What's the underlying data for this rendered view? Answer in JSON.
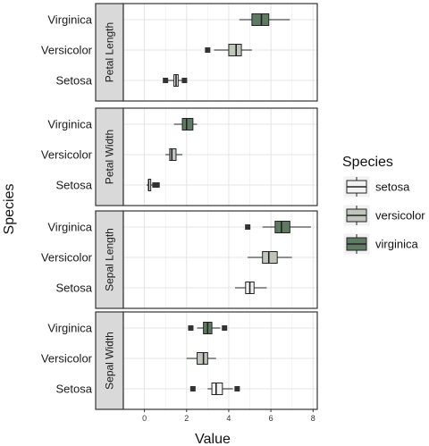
{
  "chart_data": {
    "type": "boxplot",
    "facet_by": "measurement",
    "orientation": "horizontal",
    "xlabel": "Value",
    "ylabel": "Species",
    "xlim": [
      -1,
      8.2
    ],
    "xticks": [
      0,
      2,
      4,
      6,
      8
    ],
    "grid": true,
    "categories": [
      "Virginica",
      "Versicolor",
      "Setosa"
    ],
    "legend": {
      "title": "Species",
      "position": "right",
      "entries": [
        {
          "label": "setosa",
          "color": "#f2f2f2"
        },
        {
          "label": "versicolor",
          "color": "#bfc7bc"
        },
        {
          "label": "virginica",
          "color": "#5f7a62"
        }
      ]
    },
    "facets": [
      {
        "label": "Petal Length",
        "boxes": [
          {
            "category": "Virginica",
            "color": "#5f7a62",
            "min": 4.5,
            "q1": 5.1,
            "median": 5.55,
            "q3": 5.9,
            "max": 6.9,
            "outliers": []
          },
          {
            "category": "Versicolor",
            "color": "#bfc7bc",
            "min": 3.3,
            "q1": 4.0,
            "median": 4.35,
            "q3": 4.6,
            "max": 5.1,
            "outliers": [
              3.0
            ]
          },
          {
            "category": "Setosa",
            "color": "#f2f2f2",
            "min": 1.1,
            "q1": 1.4,
            "median": 1.5,
            "q3": 1.6,
            "max": 1.9,
            "outliers": [
              1.0,
              1.9
            ]
          }
        ]
      },
      {
        "label": "Petal Width",
        "boxes": [
          {
            "category": "Virginica",
            "color": "#5f7a62",
            "min": 1.4,
            "q1": 1.8,
            "median": 2.0,
            "q3": 2.3,
            "max": 2.5,
            "outliers": []
          },
          {
            "category": "Versicolor",
            "color": "#bfc7bc",
            "min": 1.0,
            "q1": 1.2,
            "median": 1.3,
            "q3": 1.5,
            "max": 1.8,
            "outliers": []
          },
          {
            "category": "Setosa",
            "color": "#f2f2f2",
            "min": 0.1,
            "q1": 0.2,
            "median": 0.2,
            "q3": 0.3,
            "max": 0.4,
            "outliers": [
              0.5,
              0.6
            ]
          }
        ]
      },
      {
        "label": "Sepal Length",
        "boxes": [
          {
            "category": "Virginica",
            "color": "#5f7a62",
            "min": 5.6,
            "q1": 6.2,
            "median": 6.5,
            "q3": 6.9,
            "max": 7.9,
            "outliers": [
              4.9
            ]
          },
          {
            "category": "Versicolor",
            "color": "#bfc7bc",
            "min": 4.9,
            "q1": 5.6,
            "median": 5.9,
            "q3": 6.3,
            "max": 7.0,
            "outliers": []
          },
          {
            "category": "Setosa",
            "color": "#f2f2f2",
            "min": 4.3,
            "q1": 4.8,
            "median": 5.0,
            "q3": 5.2,
            "max": 5.8,
            "outliers": []
          }
        ]
      },
      {
        "label": "Sepal Width",
        "boxes": [
          {
            "category": "Virginica",
            "color": "#5f7a62",
            "min": 2.5,
            "q1": 2.8,
            "median": 3.0,
            "q3": 3.2,
            "max": 3.6,
            "outliers": [
              2.2,
              3.8
            ]
          },
          {
            "category": "Versicolor",
            "color": "#bfc7bc",
            "min": 2.0,
            "q1": 2.5,
            "median": 2.8,
            "q3": 3.0,
            "max": 3.4,
            "outliers": []
          },
          {
            "category": "Setosa",
            "color": "#f2f2f2",
            "min": 3.0,
            "q1": 3.2,
            "median": 3.4,
            "q3": 3.7,
            "max": 4.2,
            "outliers": [
              2.3,
              4.4
            ]
          }
        ]
      }
    ]
  }
}
